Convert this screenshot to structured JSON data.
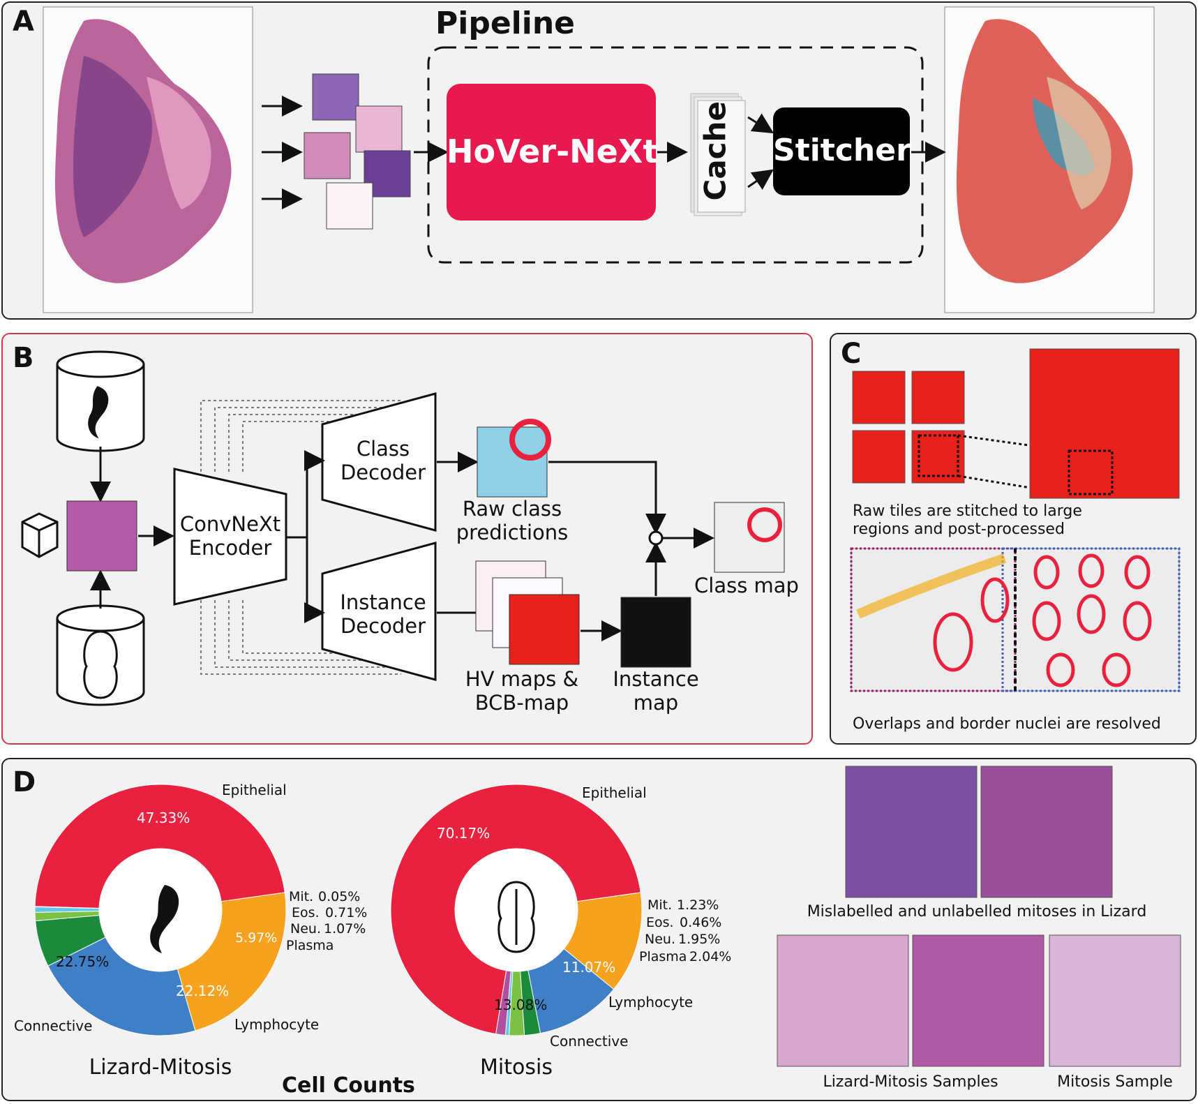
{
  "panels": {
    "a": {
      "letter": "A"
    },
    "b": {
      "letter": "B"
    },
    "c": {
      "letter": "C"
    },
    "d": {
      "letter": "D"
    }
  },
  "pipeline": {
    "title": "Pipeline",
    "model": "HoVer-NeXt",
    "cache": "Cache",
    "stitcher": "Stitcher"
  },
  "architecture": {
    "encoder": [
      "ConvNeXt",
      "Encoder"
    ],
    "class_decoder": [
      "Class",
      "Decoder"
    ],
    "instance_decoder": [
      "Instance",
      "Decoder"
    ],
    "raw_class": [
      "Raw class",
      "predictions"
    ],
    "hv_maps": [
      "HV maps &",
      "BCB-map"
    ],
    "instance_map": [
      "Instance",
      "map"
    ],
    "class_map": "Class map"
  },
  "stitching": {
    "caption1": [
      "Raw tiles are stitched to large",
      "regions and post-processed"
    ],
    "caption2": "Overlaps and border nuclei are resolved"
  },
  "cell_counts": {
    "title": "Cell Counts",
    "charts": [
      {
        "name": "Lizard-Mitosis",
        "slices": [
          {
            "label": "Epithelial",
            "value": 47.33,
            "text": "47.33%",
            "color": "#e8213f"
          },
          {
            "label": "Mit.",
            "value": 0.05,
            "text": "0.05%",
            "color": "#9b59b6"
          },
          {
            "label": "Eos.",
            "value": 0.71,
            "text": "0.71%",
            "color": "#62c6e8"
          },
          {
            "label": "Neu.",
            "value": 1.07,
            "text": "1.07%",
            "color": "#7bc143"
          },
          {
            "label": "Plasma",
            "value": 5.97,
            "text": "5.97%",
            "color": "#1b8a3a"
          },
          {
            "label": "Lymphocyte",
            "value": 22.12,
            "text": "22.12%",
            "color": "#3f7fc6"
          },
          {
            "label": "Connective",
            "value": 22.75,
            "text": "22.75%",
            "color": "#f6a21e"
          }
        ]
      },
      {
        "name": "Mitosis",
        "slices": [
          {
            "label": "Epithelial",
            "value": 70.17,
            "text": "70.17%",
            "color": "#e8213f"
          },
          {
            "label": "Mit.",
            "value": 1.23,
            "text": "1.23%",
            "color": "#b0509e"
          },
          {
            "label": "Eos.",
            "value": 0.46,
            "text": "0.46%",
            "color": "#62c6e8"
          },
          {
            "label": "Neu.",
            "value": 1.95,
            "text": "1.95%",
            "color": "#7bc143"
          },
          {
            "label": "Plasma",
            "value": 2.04,
            "text": "2.04%",
            "color": "#1b8a3a"
          },
          {
            "label": "Lymphocyte",
            "value": 11.07,
            "text": "11.07%",
            "color": "#3f7fc6"
          },
          {
            "label": "Connective",
            "value": 13.08,
            "text": "13.08%",
            "color": "#f6a21e"
          }
        ]
      }
    ]
  },
  "samples": {
    "mislabelled": "Mislabelled and unlabelled mitoses in Lizard",
    "lizard_samples": "Lizard-Mitosis Samples",
    "mitosis_sample": "Mitosis Sample"
  },
  "colors": {
    "accent": "#e8194f",
    "panel_bg": "#f2f2f2",
    "panel_b_border": "#d23a4a"
  }
}
